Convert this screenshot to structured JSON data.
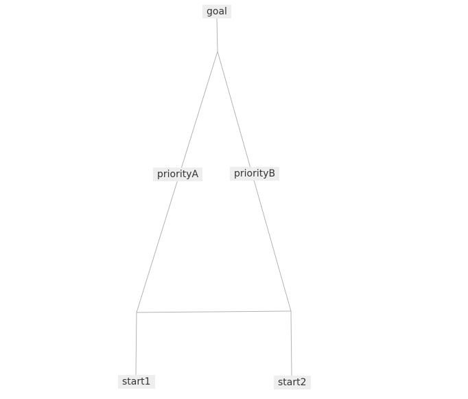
{
  "diagram": {
    "nodes": {
      "goal": "goal",
      "priorityA": "priorityA",
      "priorityB": "priorityB",
      "start1": "start1",
      "start2": "start2"
    }
  },
  "colors": {
    "edge": "#b3b3b3",
    "node_fill": "#eeeeee",
    "node_text": "#333333"
  }
}
